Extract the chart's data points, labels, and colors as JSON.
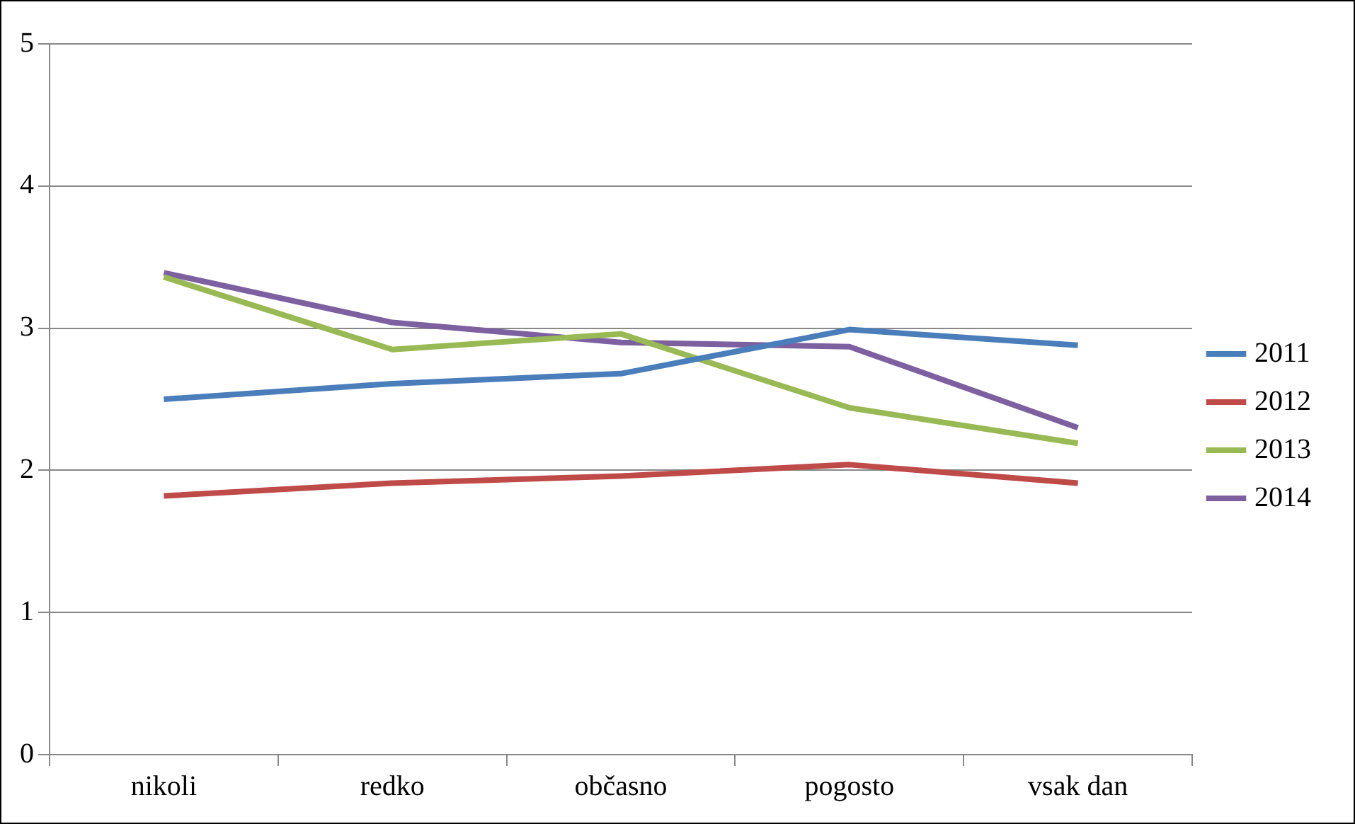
{
  "chart_data": {
    "type": "line",
    "categories": [
      "nikoli",
      "redko",
      "občasno",
      "pogosto",
      "vsak dan"
    ],
    "series": [
      {
        "name": "2011",
        "color": "#4a7ebb",
        "values": [
          2.5,
          2.61,
          2.68,
          2.99,
          2.88
        ]
      },
      {
        "name": "2012",
        "color": "#be4b48",
        "values": [
          1.82,
          1.91,
          1.96,
          2.04,
          1.91
        ]
      },
      {
        "name": "2013",
        "color": "#98b954",
        "values": [
          3.36,
          2.85,
          2.96,
          2.44,
          2.19
        ]
      },
      {
        "name": "2014",
        "color": "#7d60a0",
        "values": [
          3.39,
          3.04,
          2.9,
          2.87,
          2.3
        ]
      }
    ],
    "ylim": [
      0,
      5
    ],
    "yticks": [
      0,
      1,
      2,
      3,
      4,
      5
    ],
    "grid": "y",
    "legend": "right",
    "marker": "none",
    "line_style": "solid"
  }
}
